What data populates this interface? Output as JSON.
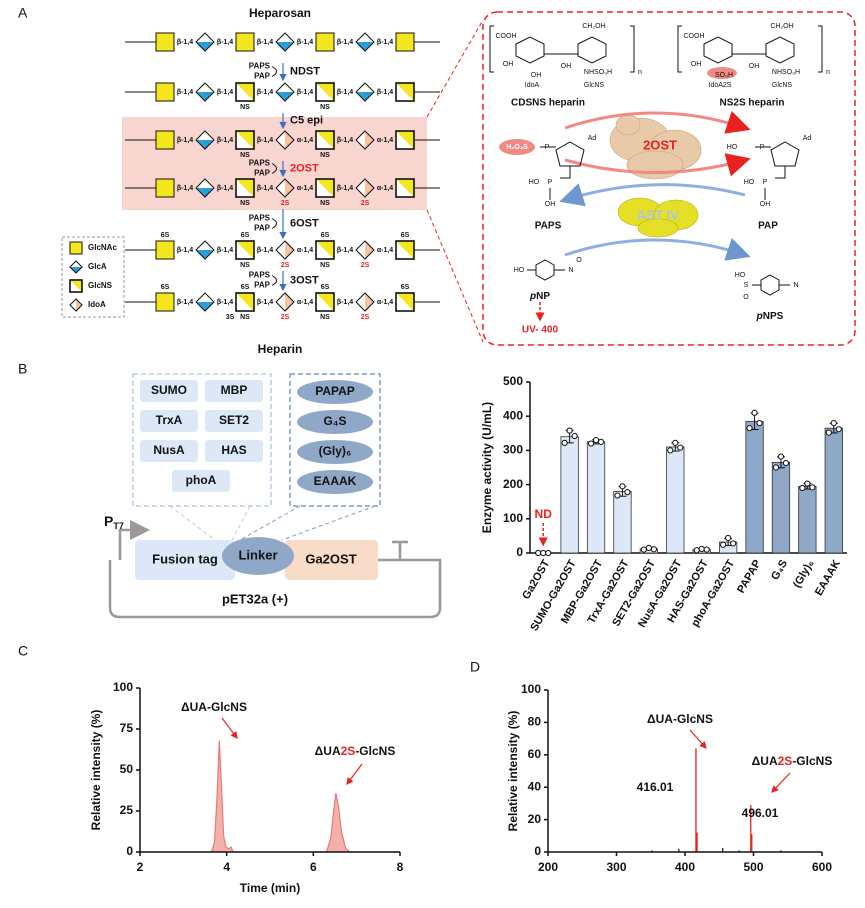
{
  "panel_labels": [
    "A",
    "B",
    "C",
    "D"
  ],
  "panel_a": {
    "top_title": "Heparosan",
    "bottom_title": "Heparin",
    "unit_colors": {
      "GlcNAc": "#f4e51c",
      "GlcA": "#2a9fd8",
      "GlcNS": "#f4e51c",
      "IdoA": "#f5c3a0"
    },
    "band_color": "#f8d5cf",
    "rows": [
      {
        "units": [
          "GlcNAc",
          "GlcA",
          "GlcNAc",
          "GlcA",
          "GlcNAc",
          "GlcA",
          "GlcNAc"
        ],
        "links": [
          "β-1,4",
          "β-1,4",
          "β-1,4",
          "β-1,4",
          "β-1,4",
          "β-1,4"
        ]
      },
      {
        "units": [
          "GlcNAc",
          "GlcA",
          "GlcNS",
          "GlcA",
          "GlcNS",
          "GlcA",
          "GlcNS"
        ],
        "links": [
          "β-1,4",
          "β-1,4",
          "β-1,4",
          "β-1,4",
          "β-1,4",
          "β-1,4"
        ],
        "below": [
          null,
          null,
          "NS",
          null,
          "NS",
          null,
          null
        ]
      },
      {
        "units": [
          "GlcNAc",
          "GlcA",
          "GlcNS",
          "IdoA",
          "GlcNS",
          "IdoA",
          "GlcNS"
        ],
        "links": [
          "β-1,4",
          "β-1,4",
          "β-1,4",
          "α-1,4",
          "β-1,4",
          "α-1,4"
        ],
        "below": [
          null,
          null,
          "NS",
          null,
          "NS",
          null,
          null
        ],
        "highlight": true
      },
      {
        "units": [
          "GlcNAc",
          "GlcA",
          "GlcNS",
          "IdoA",
          "GlcNS",
          "IdoA",
          "GlcNS"
        ],
        "links": [
          "β-1,4",
          "β-1,4",
          "β-1,4",
          "α-1,4",
          "β-1,4",
          "α-1,4"
        ],
        "below": [
          null,
          null,
          "NS",
          {
            "text": "2S",
            "color": "#e8231f"
          },
          "NS",
          {
            "text": "2S",
            "color": "#e8231f"
          },
          null
        ],
        "highlight": true
      },
      {
        "units": [
          "GlcNAc",
          "GlcA",
          "GlcNS",
          "IdoA",
          "GlcNS",
          "IdoA",
          "GlcNS"
        ],
        "links": [
          "β-1,4",
          "β-1,4",
          "β-1,4",
          "α-1,4",
          "β-1,4",
          "α-1,4"
        ],
        "above": [
          "6S",
          null,
          "6S",
          null,
          "6S",
          null,
          "6S"
        ],
        "below": [
          null,
          null,
          "NS",
          {
            "text": "2S",
            "color": "#e8231f"
          },
          "NS",
          {
            "text": "2S",
            "color": "#e8231f"
          },
          null
        ]
      },
      {
        "units": [
          "GlcNAc",
          "GlcA",
          "GlcNS",
          "IdoA",
          "GlcNS",
          "IdoA",
          "GlcNS"
        ],
        "links": [
          "β-1,4",
          "β-1,4",
          "β-1,4",
          "α-1,4",
          "β-1,4",
          "α-1,4"
        ],
        "above": [
          "6S",
          null,
          "6S",
          null,
          "6S",
          null,
          "6S"
        ],
        "below": [
          null,
          null,
          "NS",
          {
            "text": "2S",
            "color": "#e8231f"
          },
          "NS",
          {
            "text": "2S",
            "color": "#e8231f"
          },
          null
        ],
        "below_left": [
          null,
          null,
          "3S",
          null,
          null,
          null,
          null
        ]
      }
    ],
    "steps": [
      {
        "donor": "PAPS",
        "product": "PAP",
        "enzyme": "NDST"
      },
      {
        "enzyme": "C5 epi"
      },
      {
        "donor": "PAPS",
        "product": "PAP",
        "enzyme": "2OST",
        "color": "#e8231f"
      },
      {
        "donor": "PAPS",
        "product": "PAP",
        "enzyme": "6OST"
      },
      {
        "donor": "PAPS",
        "product": "PAP",
        "enzyme": "3OST"
      }
    ],
    "legend": [
      "GlcNAc",
      "GlcA",
      "GlcNS",
      "IdoA"
    ],
    "right_box": {
      "substrate": {
        "name": "CDSNS heparin",
        "atoms": [
          "COOH",
          "OH",
          "OH",
          "IdoA",
          "CH₂OH",
          "OH",
          "NHSO₃H",
          "GlcNS",
          "n"
        ]
      },
      "product": {
        "name": "NS2S heparin",
        "atoms": [
          "COOH",
          "OH",
          "SO₃H",
          "IdoA2S",
          "CH₂OH",
          "OH",
          "NHSO₃H",
          "GlcNS",
          "n"
        ]
      },
      "enzyme": "2OST",
      "donor": {
        "name": "PAPS",
        "atoms": [
          "H₂O₃S",
          "P",
          "Ad",
          "HO",
          "P",
          "OH"
        ]
      },
      "byproduct": {
        "name": "PAP",
        "atoms": [
          "HO",
          "P",
          "Ad",
          "HO",
          "P",
          "OH"
        ]
      },
      "helper": "AST IV",
      "pnp": {
        "name": [
          "p",
          "NP"
        ],
        "atoms": [
          "HO",
          "N",
          "O"
        ]
      },
      "pnps": {
        "name": [
          "p",
          "NPS"
        ],
        "atoms": [
          "HO",
          "S",
          "O",
          "N"
        ]
      },
      "readout": "UV- 400"
    }
  },
  "panel_b": {
    "fusion_tags": [
      "SUMO",
      "MBP",
      "TrxA",
      "SET2",
      "NusA",
      "HAS",
      "phoA"
    ],
    "linkers": [
      "PAPAP",
      "G₄S",
      "(Gly)₆",
      "EAAAK"
    ],
    "promoter": {
      "main": "P",
      "sub": "T7"
    },
    "parts": [
      "Fusion tag",
      "Linker",
      "Ga2OST"
    ],
    "plasmid": "pET32a (+)"
  },
  "chart_data": [
    {
      "type": "bar",
      "ylabel": "Enzyme activity (U/mL)",
      "categories": [
        "Ga2OST",
        "SUMO-Ga2OST",
        "MBP-Ga2OST",
        "TrxA-Ga2OST",
        "SET2-Ga2OST",
        "NusA-Ga2OST",
        "HAS-Ga2OST",
        "phoA-Ga2OST",
        "PAPAP",
        "G₄S",
        "(Gly)₆",
        "EAAAK"
      ],
      "values": [
        0,
        340,
        325,
        180,
        12,
        310,
        10,
        32,
        385,
        265,
        195,
        365
      ],
      "errors": [
        0,
        18,
        6,
        14,
        3,
        12,
        3,
        10,
        24,
        16,
        8,
        14
      ],
      "replicates": [
        [
          0,
          0,
          0
        ],
        [
          322,
          358,
          342
        ],
        [
          320,
          330,
          325
        ],
        [
          168,
          195,
          178
        ],
        [
          10,
          15,
          11
        ],
        [
          300,
          322,
          308
        ],
        [
          8,
          12,
          10
        ],
        [
          24,
          44,
          28
        ],
        [
          365,
          410,
          380
        ],
        [
          250,
          282,
          263
        ],
        [
          190,
          203,
          192
        ],
        [
          352,
          380,
          362
        ]
      ],
      "colors": [
        "#dce8f8",
        "#dce8f8",
        "#dce8f8",
        "#dce8f8",
        "#dce8f8",
        "#dce8f8",
        "#dce8f8",
        "#dce8f8",
        "#8fa8c8",
        "#8fa8c8",
        "#8fa8c8",
        "#8fa8c8"
      ],
      "annotation": {
        "text": "ND",
        "at": "Ga2OST",
        "color": "#e8231f"
      },
      "ylim": [
        0,
        500
      ],
      "yticks": [
        0,
        100,
        200,
        300,
        400,
        500
      ]
    },
    {
      "type": "area",
      "ylabel": "Relative intensity (%)",
      "xlabel": "Time (min)",
      "series": [
        {
          "color": "#e57b74",
          "fill": "#f4b0aa",
          "x": [
            2.0,
            3.65,
            3.72,
            3.78,
            3.83,
            3.88,
            3.93,
            3.98,
            4.05,
            4.1,
            4.15,
            6.3,
            6.4,
            6.47,
            6.52,
            6.58,
            6.65,
            6.75,
            6.85,
            8.0
          ],
          "values": [
            0,
            0,
            6,
            35,
            68,
            40,
            10,
            3,
            2,
            3,
            0,
            0,
            8,
            25,
            36,
            28,
            12,
            2,
            0,
            0
          ]
        }
      ],
      "annotations": [
        [
          {
            "text": "ΔUA-GlcNS"
          }
        ],
        [
          {
            "text": "ΔUA"
          },
          {
            "text": "2S",
            "color": "#e8231f"
          },
          {
            "text": "-GlcNS"
          }
        ]
      ],
      "xlim": [
        2,
        8
      ],
      "xticks": [
        2,
        4,
        6,
        8
      ],
      "ylim": [
        0,
        100
      ],
      "yticks": [
        0,
        25,
        50,
        75,
        100
      ]
    },
    {
      "type": "stem",
      "ylabel": "Relative intensity (%)",
      "series": [
        {
          "color": "#e8231f",
          "x": [
            416.01,
            417.6,
            496.01,
            497.5
          ],
          "values": [
            64,
            12,
            29,
            11
          ]
        },
        {
          "color": "#222222",
          "x": [
            352,
            391,
            455,
            479,
            540
          ],
          "values": [
            1,
            2,
            2.5,
            1,
            1
          ]
        }
      ],
      "annotations": [
        [
          {
            "text": "ΔUA-GlcNS"
          }
        ],
        [
          {
            "text": "ΔUA"
          },
          {
            "text": "2S",
            "color": "#e8231f"
          },
          {
            "text": "-GlcNS"
          }
        ]
      ],
      "xlim": [
        200,
        600
      ],
      "xticks": [
        200,
        300,
        400,
        500,
        600
      ],
      "ylim": [
        0,
        100
      ],
      "yticks": [
        0,
        20,
        40,
        60,
        80,
        100
      ]
    }
  ]
}
